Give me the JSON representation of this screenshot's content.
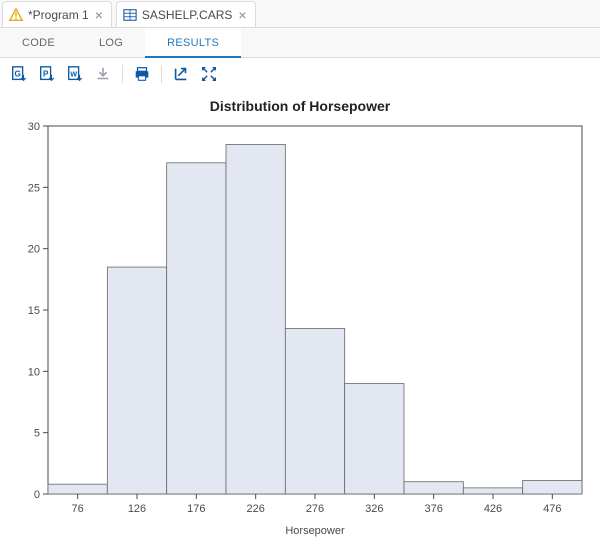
{
  "file_tabs": [
    {
      "label": "*Program 1",
      "icon": "warning"
    },
    {
      "label": "SASHELP.CARS",
      "icon": "table"
    }
  ],
  "view_tabs": {
    "code": "CODE",
    "log": "LOG",
    "results": "RESULTS",
    "active": "results"
  },
  "toolbar_icons": [
    "code-download",
    "pdf-download",
    "word-download",
    "download",
    "print",
    "popout",
    "collapse"
  ],
  "chart": {
    "type": "histogram",
    "title": "Distribution of Horsepower",
    "xlabel": "Horsepower",
    "categories": [
      "76",
      "126",
      "176",
      "226",
      "276",
      "326",
      "376",
      "426",
      "476"
    ],
    "values": [
      0.8,
      18.5,
      27,
      28.5,
      13.5,
      9,
      1,
      0.5,
      1.1
    ],
    "bar_fill": "#e2e7f2",
    "bar_stroke": "#666666",
    "axis_color": "#4a4a4a",
    "tick_color": "#4a4a4a",
    "text_color": "#4a4a4a",
    "title_fontsize": 14,
    "label_fontsize": 11,
    "tick_fontsize": 11,
    "ylim": [
      0,
      30
    ],
    "ytick_step": 5,
    "background_color": "#ffffff",
    "bar_gap": 0
  },
  "colors": {
    "accent": "#1f78c1",
    "icon_blue": "#0b5aa6"
  }
}
